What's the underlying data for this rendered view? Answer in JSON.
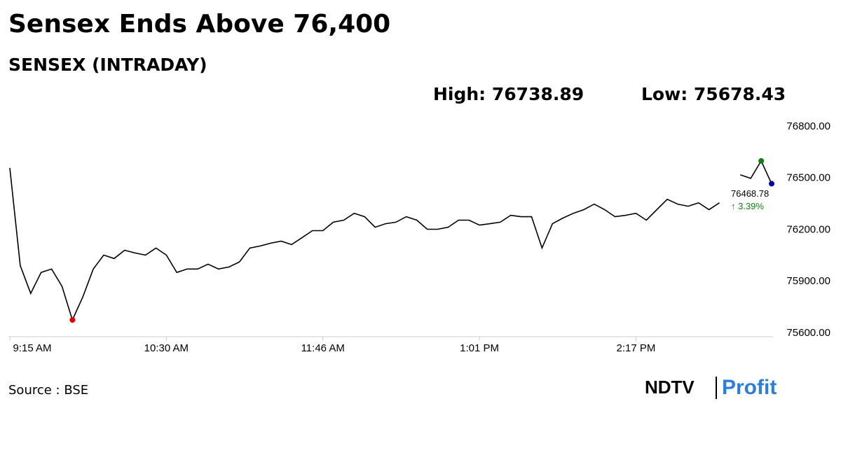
{
  "chart_data": {
    "type": "line",
    "title": "Sensex Ends Above 76,400",
    "subtitle": "SENSEX (INTRADAY)",
    "high_text": "High: 76738.89",
    "low_text": "Low: 75678.43",
    "change_text": "↑ 3.39%",
    "source": "Source : BSE",
    "logo": {
      "left": "NDTV",
      "right": "Profit"
    },
    "categories": [
      "9:15 AM",
      null,
      null,
      null,
      null,
      null,
      null,
      null,
      null,
      null,
      null,
      null,
      null,
      null,
      null,
      "10:30 AM",
      null,
      null,
      null,
      null,
      null,
      null,
      null,
      null,
      null,
      null,
      null,
      null,
      null,
      null,
      "11:46 AM",
      null,
      null,
      null,
      null,
      null,
      null,
      null,
      null,
      null,
      null,
      null,
      null,
      null,
      null,
      "1:01 PM",
      null,
      null,
      null,
      null,
      null,
      null,
      null,
      null,
      null,
      null,
      null,
      null,
      null,
      null,
      "2:17 PM",
      null,
      null,
      null,
      null,
      null,
      null,
      null,
      null,
      null,
      null,
      null,
      null,
      null
    ],
    "series": [
      {
        "name": "SENSEX",
        "color": "#000000",
        "values": [
          76561,
          75993,
          75831,
          75953,
          75973,
          75872,
          75677,
          75811,
          75973,
          76054,
          76034,
          76082,
          76066,
          76054,
          76095,
          76054,
          75953,
          75973,
          75973,
          76001,
          75973,
          75985,
          76014,
          76095,
          76107,
          76123,
          76135,
          76115,
          76155,
          76196,
          76196,
          76245,
          76257,
          76297,
          76277,
          76216,
          76236,
          76245,
          76277,
          76257,
          76204,
          76204,
          76216,
          76257,
          76257,
          76228,
          76236,
          76245,
          76285,
          76277,
          76277,
          76095,
          76236,
          76269,
          76297,
          76318,
          76350,
          76318,
          76277,
          76285,
          76297,
          76257,
          76318,
          76378,
          76350,
          76338,
          76358,
          76318,
          76358,
          null,
          76520,
          76500,
          76601,
          76468.78
        ]
      }
    ],
    "marker_colors": {
      "low": "#e00000",
      "high": "#108010",
      "last": "#0000b0"
    },
    "change_color": "#108010",
    "ylim": [
      75600,
      76800
    ],
    "yticks": [
      {
        "value": 75600,
        "label": "75600.00"
      },
      {
        "value": 75900,
        "label": "75900.00"
      },
      {
        "value": 76200,
        "label": "76200.00"
      },
      {
        "value": 76500,
        "label": "76500.00"
      },
      {
        "value": 76800,
        "label": "76800.00"
      }
    ],
    "grid": false
  }
}
